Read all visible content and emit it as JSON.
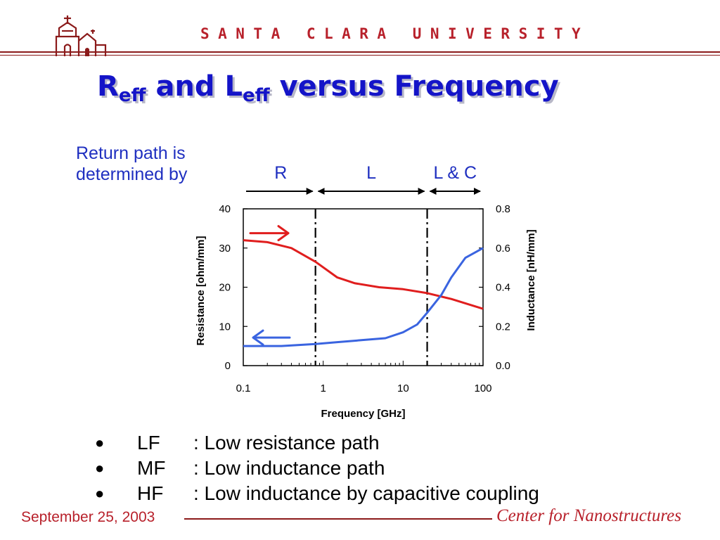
{
  "header": {
    "university": "SANTA CLARA UNIVERSITY",
    "logo_icon": "mission-church-icon",
    "title_main_1": "R",
    "title_sub_1": "eff",
    "title_mid": " and L",
    "title_sub_2": "eff",
    "title_end": " versus Frequency"
  },
  "return_path_label": [
    "Return path is",
    "determined by"
  ],
  "regions": [
    {
      "label": "R"
    },
    {
      "label": "L"
    },
    {
      "label": "L & C"
    }
  ],
  "chart_data": {
    "type": "line",
    "title": "",
    "xlabel": "Frequency [GHz]",
    "ylabel": "Resistance [ohm/mm]",
    "y2label": "Inductance [nH/mm]",
    "xscale": "log",
    "xlim": [
      0.1,
      100
    ],
    "ylim": [
      0,
      40
    ],
    "y2lim": [
      0.0,
      0.8
    ],
    "x_ticks": [
      "0.1",
      "1",
      "10",
      "100"
    ],
    "y_ticks": [
      "0",
      "10",
      "20",
      "30",
      "40"
    ],
    "y2_ticks": [
      "0.0",
      "0.2",
      "0.4",
      "0.6",
      "0.8"
    ],
    "region_boundaries": [
      0.8,
      20
    ],
    "series": [
      {
        "color": "#e01e1e",
        "axis": "left",
        "arrow": "right",
        "x": [
          0.1,
          0.2,
          0.4,
          0.8,
          1.5,
          2.5,
          5,
          10,
          20,
          40,
          100
        ],
        "y": [
          32,
          31.5,
          30,
          26.5,
          22.5,
          21,
          20,
          19.5,
          18.5,
          17,
          14.5
        ]
      },
      {
        "color": "#3a64e0",
        "axis": "right",
        "arrow": "left",
        "x": [
          0.1,
          0.3,
          0.8,
          1.5,
          3,
          6,
          10,
          15,
          20,
          30,
          40,
          60,
          100
        ],
        "y": [
          0.1,
          0.1,
          0.11,
          0.12,
          0.13,
          0.14,
          0.17,
          0.21,
          0.27,
          0.36,
          0.45,
          0.55,
          0.6
        ]
      }
    ]
  },
  "bullets": [
    {
      "term": "LF",
      "desc": ": Low resistance path"
    },
    {
      "term": "MF",
      "desc": ": Low inductance path"
    },
    {
      "term": "HF",
      "desc": ": Low inductance by capacitive coupling"
    }
  ],
  "footer": {
    "date": "September 25, 2003",
    "center": "Center for Nanostructures"
  }
}
